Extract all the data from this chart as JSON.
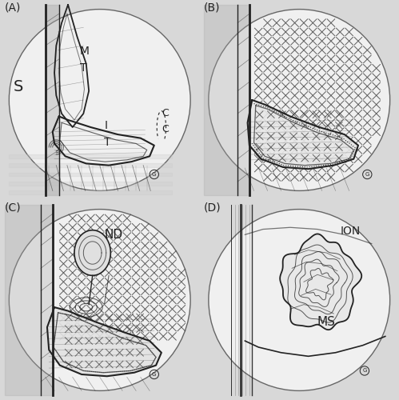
{
  "bg_color": "#d8d8d8",
  "circle_edge_color": "#666666",
  "circle_face_color": "#f0f0f0",
  "line_color": "#222222",
  "panel_labels": [
    "(A)",
    "(B)",
    "(C)",
    "(D)"
  ],
  "panel_label_fontsize": 10,
  "figsize": [
    4.99,
    5.0
  ],
  "dpi": 100,
  "grid_rows": 2,
  "grid_cols": 2
}
